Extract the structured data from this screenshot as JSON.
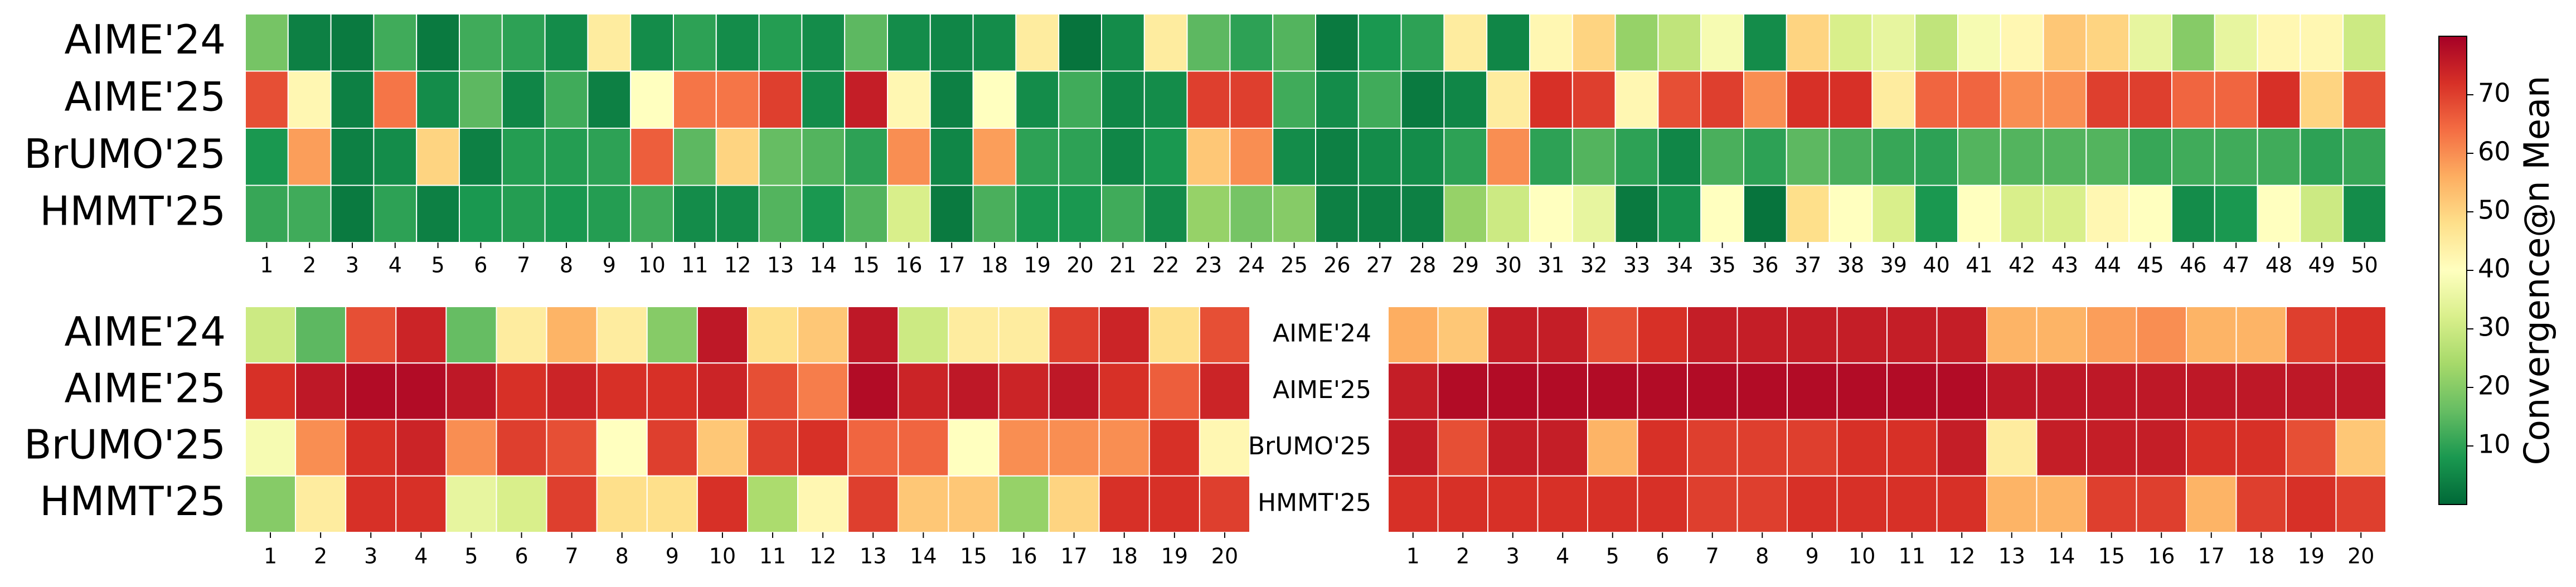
{
  "colormap": {
    "name": "RdYlGn_r",
    "stops": [
      "#006837",
      "#1a9850",
      "#66bd63",
      "#a6d96a",
      "#d9ef8b",
      "#ffffbf",
      "#fee08b",
      "#fdae61",
      "#f46d43",
      "#d73027",
      "#a50026"
    ]
  },
  "colorbar": {
    "label": "Convergence@n Mean",
    "vmin": 0,
    "vmax": 80,
    "ticks": [
      10,
      20,
      30,
      40,
      50,
      60,
      70
    ]
  },
  "chart_data": [
    {
      "type": "heatmap",
      "rows": [
        "AIME'24",
        "AIME'25",
        "BrUMO'25",
        "HMMT'25"
      ],
      "columns": [
        "1",
        "2",
        "3",
        "4",
        "5",
        "6",
        "7",
        "8",
        "9",
        "10",
        "11",
        "12",
        "13",
        "14",
        "15",
        "16",
        "17",
        "18",
        "19",
        "20",
        "21",
        "22",
        "23",
        "24",
        "25",
        "26",
        "27",
        "28",
        "29",
        "30",
        "31",
        "32",
        "33",
        "34",
        "35",
        "36",
        "37",
        "38",
        "39",
        "40",
        "41",
        "42",
        "43",
        "44",
        "45",
        "46",
        "47",
        "48",
        "49",
        "50"
      ],
      "values": [
        [
          18,
          4,
          3,
          12,
          3,
          12,
          10,
          6,
          45,
          6,
          10,
          6,
          9,
          6,
          15,
          6,
          5,
          6,
          45,
          2,
          6,
          45,
          15,
          10,
          14,
          3,
          8,
          10,
          45,
          5,
          42,
          50,
          22,
          28,
          38,
          6,
          50,
          32,
          35,
          28,
          38,
          42,
          52,
          50,
          35,
          20,
          35,
          42,
          42,
          30
        ],
        [
          68,
          42,
          4,
          63,
          6,
          15,
          5,
          12,
          4,
          40,
          63,
          63,
          70,
          6,
          75,
          42,
          4,
          40,
          6,
          12,
          5,
          6,
          70,
          70,
          12,
          6,
          12,
          3,
          5,
          45,
          72,
          70,
          42,
          68,
          70,
          60,
          72,
          72,
          45,
          65,
          65,
          60,
          60,
          70,
          70,
          65,
          65,
          72,
          50,
          68
        ],
        [
          8,
          58,
          4,
          6,
          50,
          4,
          9,
          9,
          10,
          66,
          15,
          50,
          16,
          14,
          10,
          60,
          5,
          58,
          10,
          10,
          5,
          8,
          52,
          60,
          6,
          4,
          6,
          6,
          10,
          60,
          10,
          14,
          10,
          5,
          13,
          10,
          15,
          13,
          11,
          10,
          14,
          14,
          14,
          14,
          11,
          12,
          12,
          12,
          10,
          11
        ],
        [
          11,
          12,
          3,
          10,
          4,
          8,
          9,
          8,
          9,
          12,
          6,
          6,
          14,
          8,
          14,
          32,
          3,
          13,
          8,
          8,
          12,
          6,
          22,
          18,
          20,
          4,
          4,
          4,
          22,
          30,
          40,
          35,
          3,
          7,
          40,
          2,
          48,
          40,
          32,
          8,
          40,
          32,
          32,
          42,
          40,
          6,
          8,
          40,
          30,
          6
        ]
      ]
    },
    {
      "type": "heatmap",
      "rows": [
        "AIME'24",
        "AIME'25",
        "BrUMO'25",
        "HMMT'25"
      ],
      "columns": [
        "1",
        "2",
        "3",
        "4",
        "5",
        "6",
        "7",
        "8",
        "9",
        "10",
        "11",
        "12",
        "13",
        "14",
        "15",
        "16",
        "17",
        "18",
        "19",
        "20"
      ],
      "values": [
        [
          30,
          15,
          68,
          74,
          16,
          45,
          55,
          45,
          20,
          76,
          48,
          52,
          76,
          30,
          45,
          45,
          70,
          74,
          48,
          68
        ],
        [
          72,
          76,
          78,
          78,
          76,
          72,
          74,
          72,
          72,
          74,
          68,
          62,
          78,
          74,
          76,
          74,
          76,
          72,
          66,
          74
        ],
        [
          38,
          60,
          72,
          74,
          60,
          70,
          68,
          40,
          70,
          52,
          70,
          72,
          65,
          65,
          40,
          60,
          60,
          60,
          72,
          42
        ],
        [
          20,
          45,
          72,
          72,
          35,
          32,
          70,
          48,
          48,
          72,
          25,
          42,
          70,
          52,
          52,
          22,
          50,
          72,
          72,
          70
        ]
      ]
    },
    {
      "type": "heatmap",
      "rows": [
        "AIME'24",
        "AIME'25",
        "BrUMO'25",
        "HMMT'25"
      ],
      "columns": [
        "1",
        "2",
        "3",
        "4",
        "5",
        "6",
        "7",
        "8",
        "9",
        "10",
        "11",
        "12",
        "13",
        "14",
        "15",
        "16",
        "17",
        "18",
        "19",
        "20"
      ],
      "values": [
        [
          56,
          52,
          75,
          75,
          68,
          72,
          75,
          75,
          75,
          75,
          75,
          75,
          55,
          55,
          58,
          60,
          55,
          55,
          70,
          72
        ],
        [
          75,
          78,
          78,
          78,
          78,
          78,
          78,
          78,
          78,
          78,
          78,
          78,
          76,
          76,
          76,
          76,
          76,
          76,
          76,
          76
        ],
        [
          75,
          68,
          75,
          75,
          55,
          72,
          70,
          70,
          70,
          72,
          72,
          75,
          45,
          75,
          75,
          75,
          72,
          72,
          68,
          52
        ],
        [
          72,
          72,
          72,
          72,
          72,
          72,
          70,
          70,
          72,
          72,
          72,
          72,
          55,
          55,
          70,
          70,
          55,
          70,
          72,
          70
        ]
      ]
    }
  ]
}
